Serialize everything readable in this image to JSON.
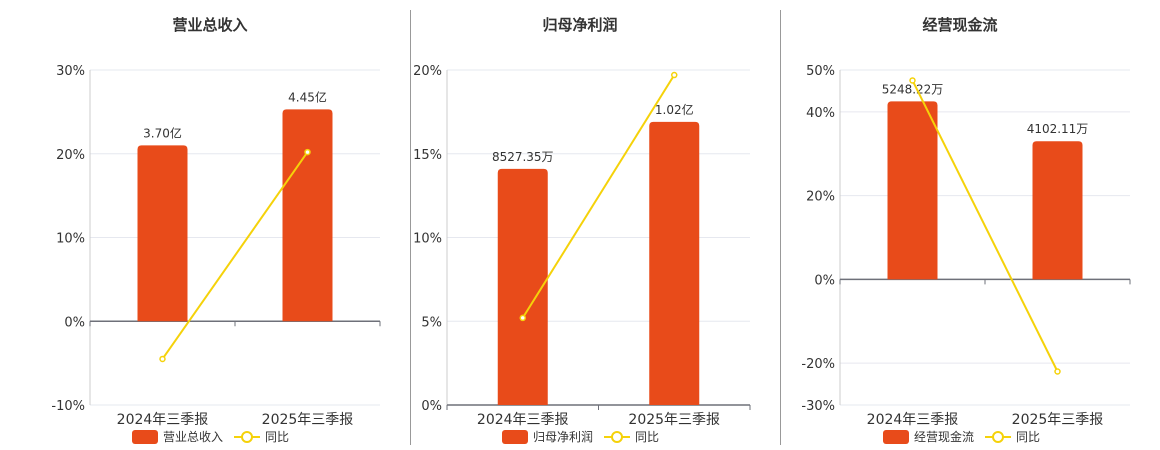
{
  "colors": {
    "bar": "#e84b1a",
    "line": "#f5d20a",
    "grid": "#e6e8ef",
    "axis": "#6e7079"
  },
  "charts": [
    {
      "title": "营业总收入",
      "legend_bar": "营业总收入",
      "legend_line": "同比",
      "chart_data": {
        "type": "bar",
        "categories": [
          "2024年三季报",
          "2025年三季报"
        ],
        "series": [
          {
            "name": "营业总收入",
            "type": "bar",
            "values": [
              21,
              25.3
            ],
            "labels": [
              "3.70亿",
              "4.45亿"
            ]
          },
          {
            "name": "同比",
            "type": "line",
            "values": [
              -4.5,
              20.2
            ]
          }
        ],
        "ylim": [
          -10,
          30
        ],
        "yticks": [
          "30%",
          "20%",
          "10%",
          "0%",
          "-10%"
        ],
        "grid": true,
        "legend": "bottom"
      }
    },
    {
      "title": "归母净利润",
      "legend_bar": "归母净利润",
      "legend_line": "同比",
      "chart_data": {
        "type": "bar",
        "categories": [
          "2024年三季报",
          "2025年三季报"
        ],
        "series": [
          {
            "name": "归母净利润",
            "type": "bar",
            "values": [
              14.1,
              16.9
            ],
            "labels": [
              "8527.35万",
              "1.02亿"
            ]
          },
          {
            "name": "同比",
            "type": "line",
            "values": [
              5.2,
              19.7
            ]
          }
        ],
        "ylim": [
          0,
          20
        ],
        "yticks": [
          "20%",
          "15%",
          "10%",
          "5%",
          "0%"
        ],
        "grid": true,
        "legend": "bottom"
      }
    },
    {
      "title": "经营现金流",
      "legend_bar": "经营现金流",
      "legend_line": "同比",
      "chart_data": {
        "type": "bar",
        "categories": [
          "2024年三季报",
          "2025年三季报"
        ],
        "series": [
          {
            "name": "经营现金流",
            "type": "bar",
            "values": [
              42.5,
              33
            ],
            "labels": [
              "5248.22万",
              "4102.11万"
            ]
          },
          {
            "name": "同比",
            "type": "line",
            "values": [
              47.5,
              -22
            ]
          }
        ],
        "ylim": [
          -30,
          50
        ],
        "yticks": [
          "50%",
          "40%",
          "20%",
          "0%",
          "-20%",
          "-30%"
        ],
        "ytick_values": [
          50,
          40,
          20,
          0,
          -20,
          -30
        ],
        "grid": true,
        "legend": "bottom"
      }
    }
  ]
}
